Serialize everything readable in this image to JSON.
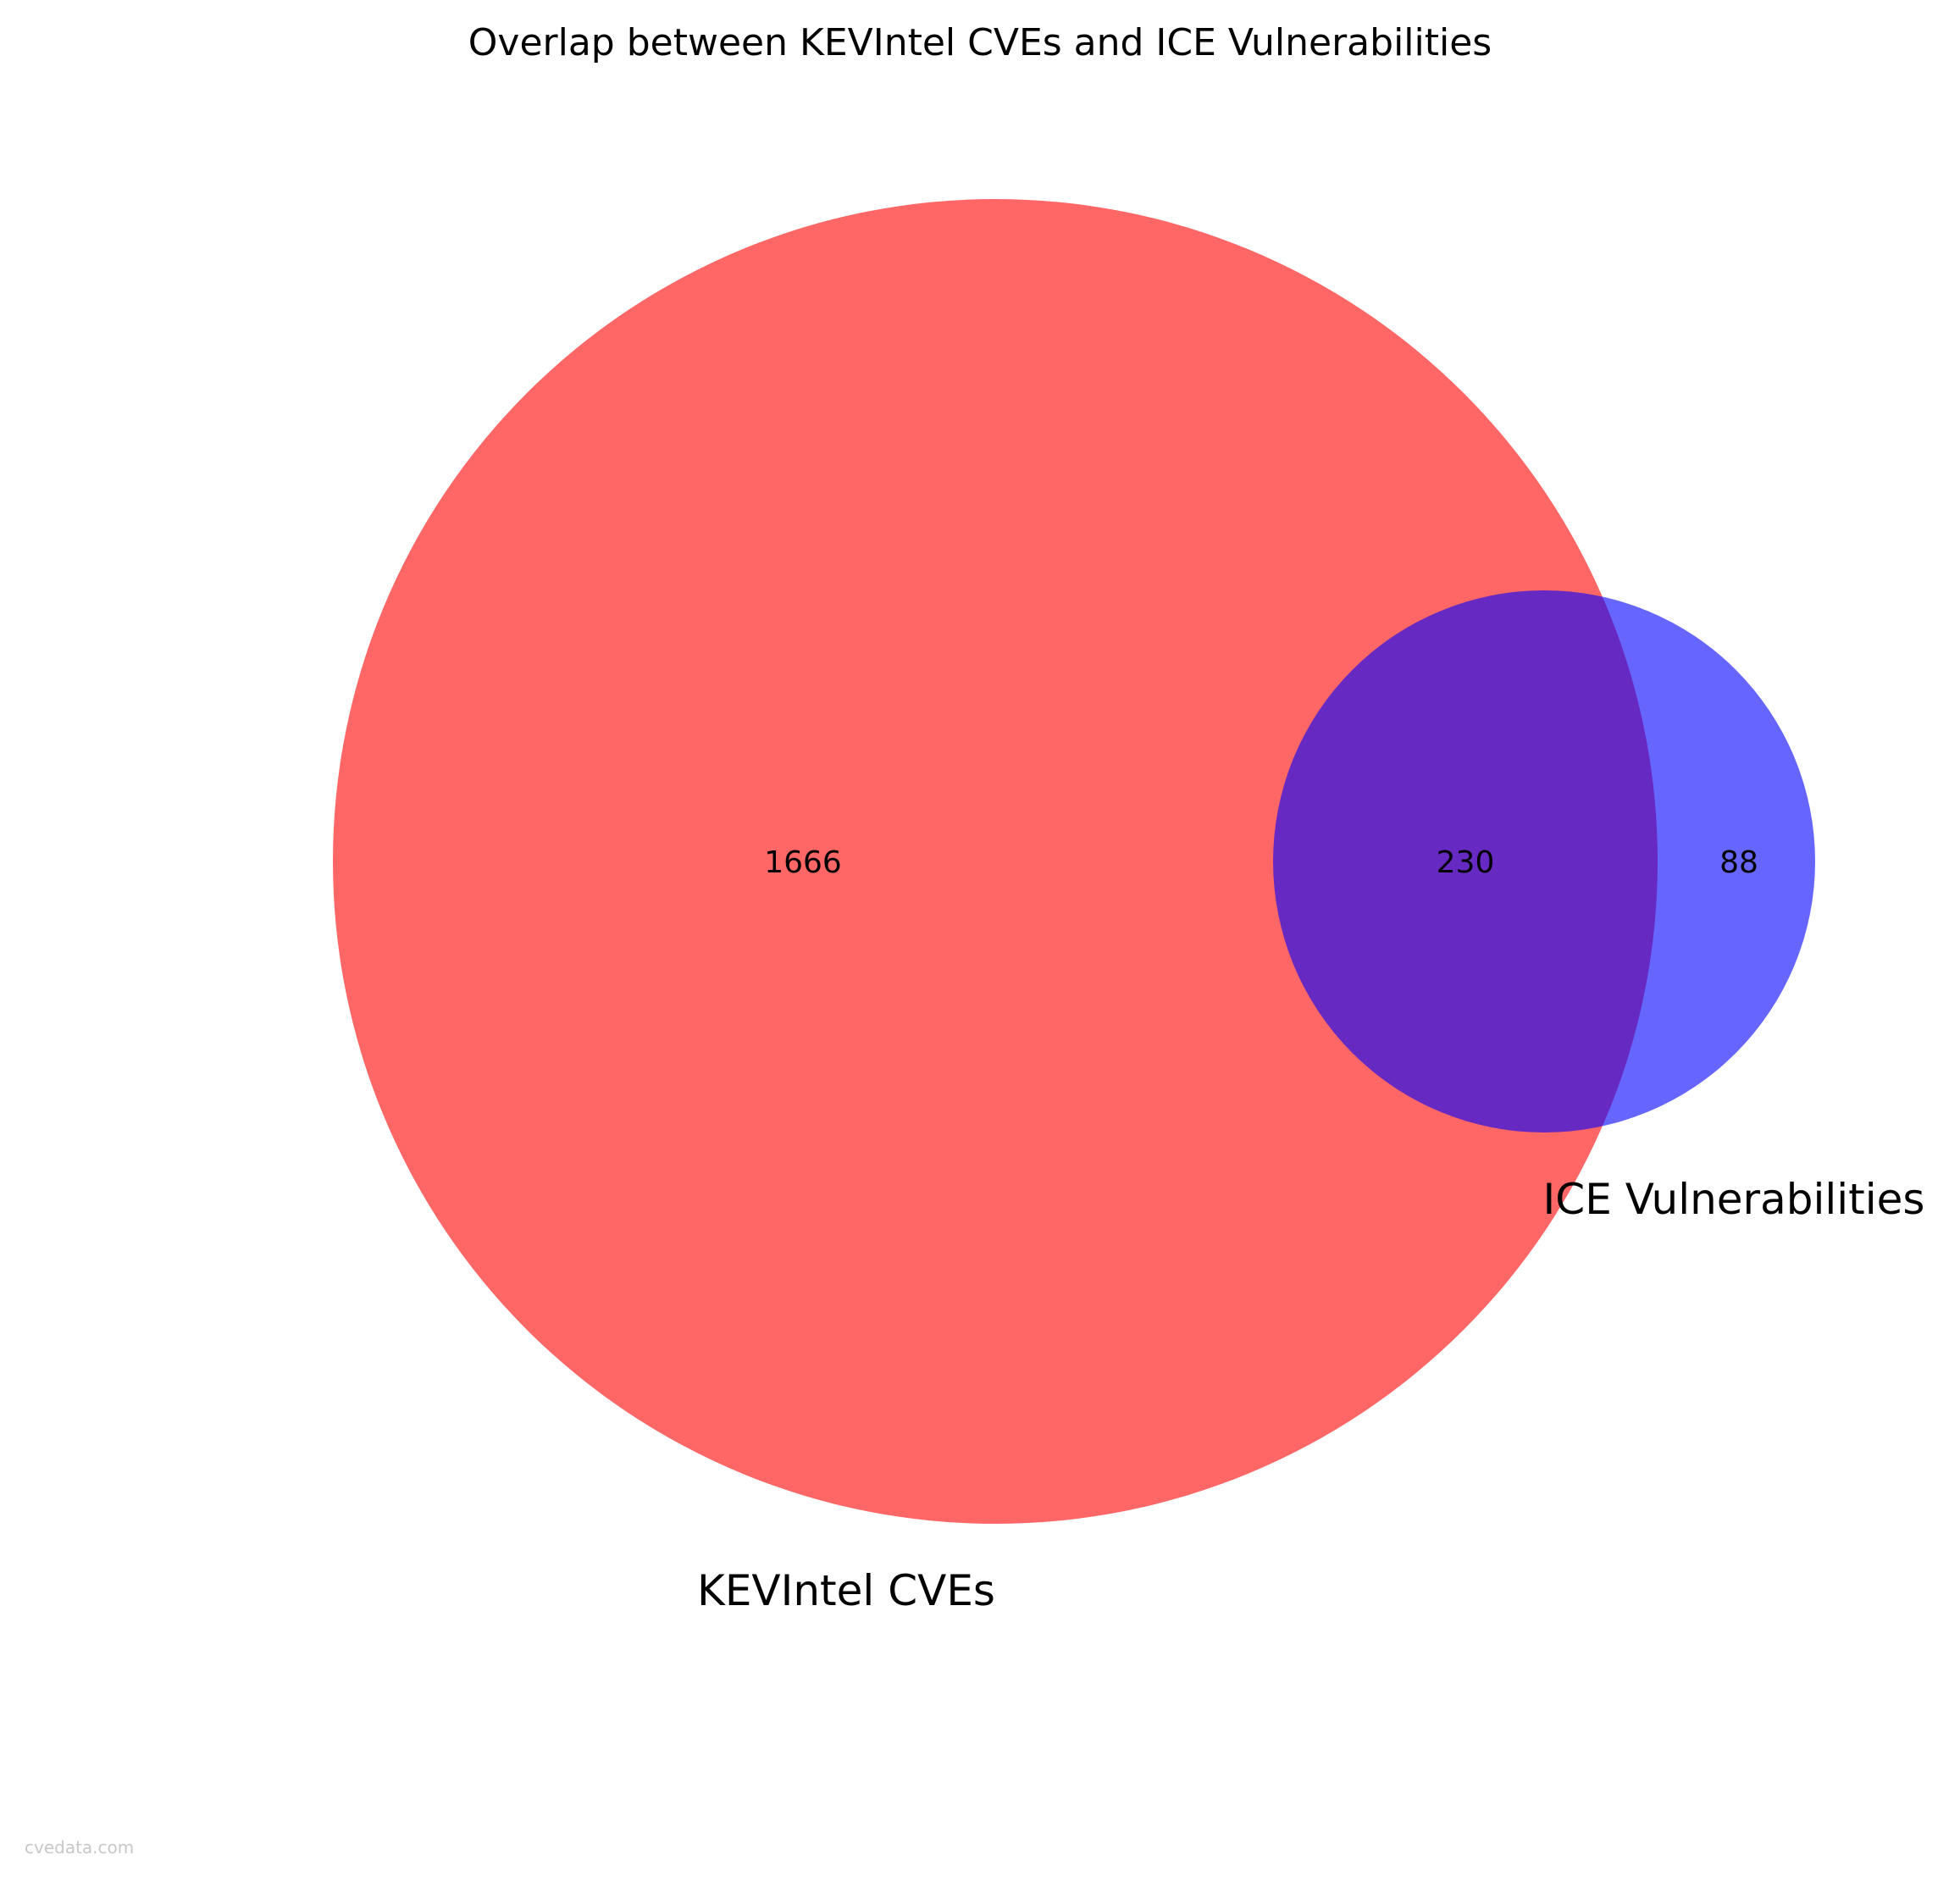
{
  "chart_data": {
    "type": "venn",
    "title": "Overlap between KEVIntel CVEs and ICE Vulnerabilities",
    "sets": [
      {
        "name": "KEVIntel CVEs",
        "only": 1666,
        "color": "#ff0000",
        "alpha": 0.6
      },
      {
        "name": "ICE Vulnerabilities",
        "only": 88,
        "color": "#0000ff",
        "alpha": 0.6
      }
    ],
    "intersection": 230,
    "labels": {
      "left_only": "1666",
      "intersection": "230",
      "right_only": "88"
    }
  },
  "watermark": "cvedata.com"
}
